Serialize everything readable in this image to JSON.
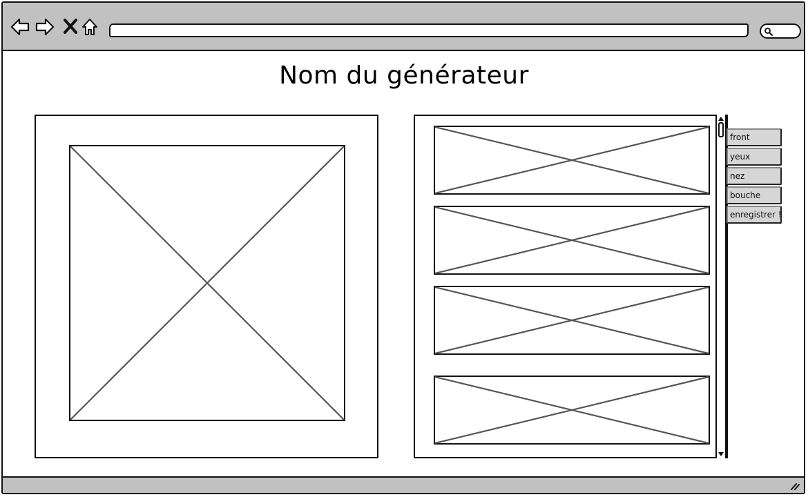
{
  "page": {
    "title": "Nom du générateur"
  },
  "browser": {
    "url": "",
    "search_placeholder": ""
  },
  "sidebar_buttons": [
    {
      "label": "front"
    },
    {
      "label": "yeux"
    },
    {
      "label": "nez"
    },
    {
      "label": "bouche"
    },
    {
      "label": "enregistrer !"
    }
  ],
  "icons": {
    "back": "back-arrow-icon",
    "forward": "forward-arrow-icon",
    "stop": "close-icon",
    "home": "home-icon",
    "search": "search-icon",
    "resize": "resize-grip-icon"
  },
  "colors": {
    "chrome": "#c1c1c1",
    "button": "#d6d6d6",
    "placeholder_line": "#555555"
  }
}
